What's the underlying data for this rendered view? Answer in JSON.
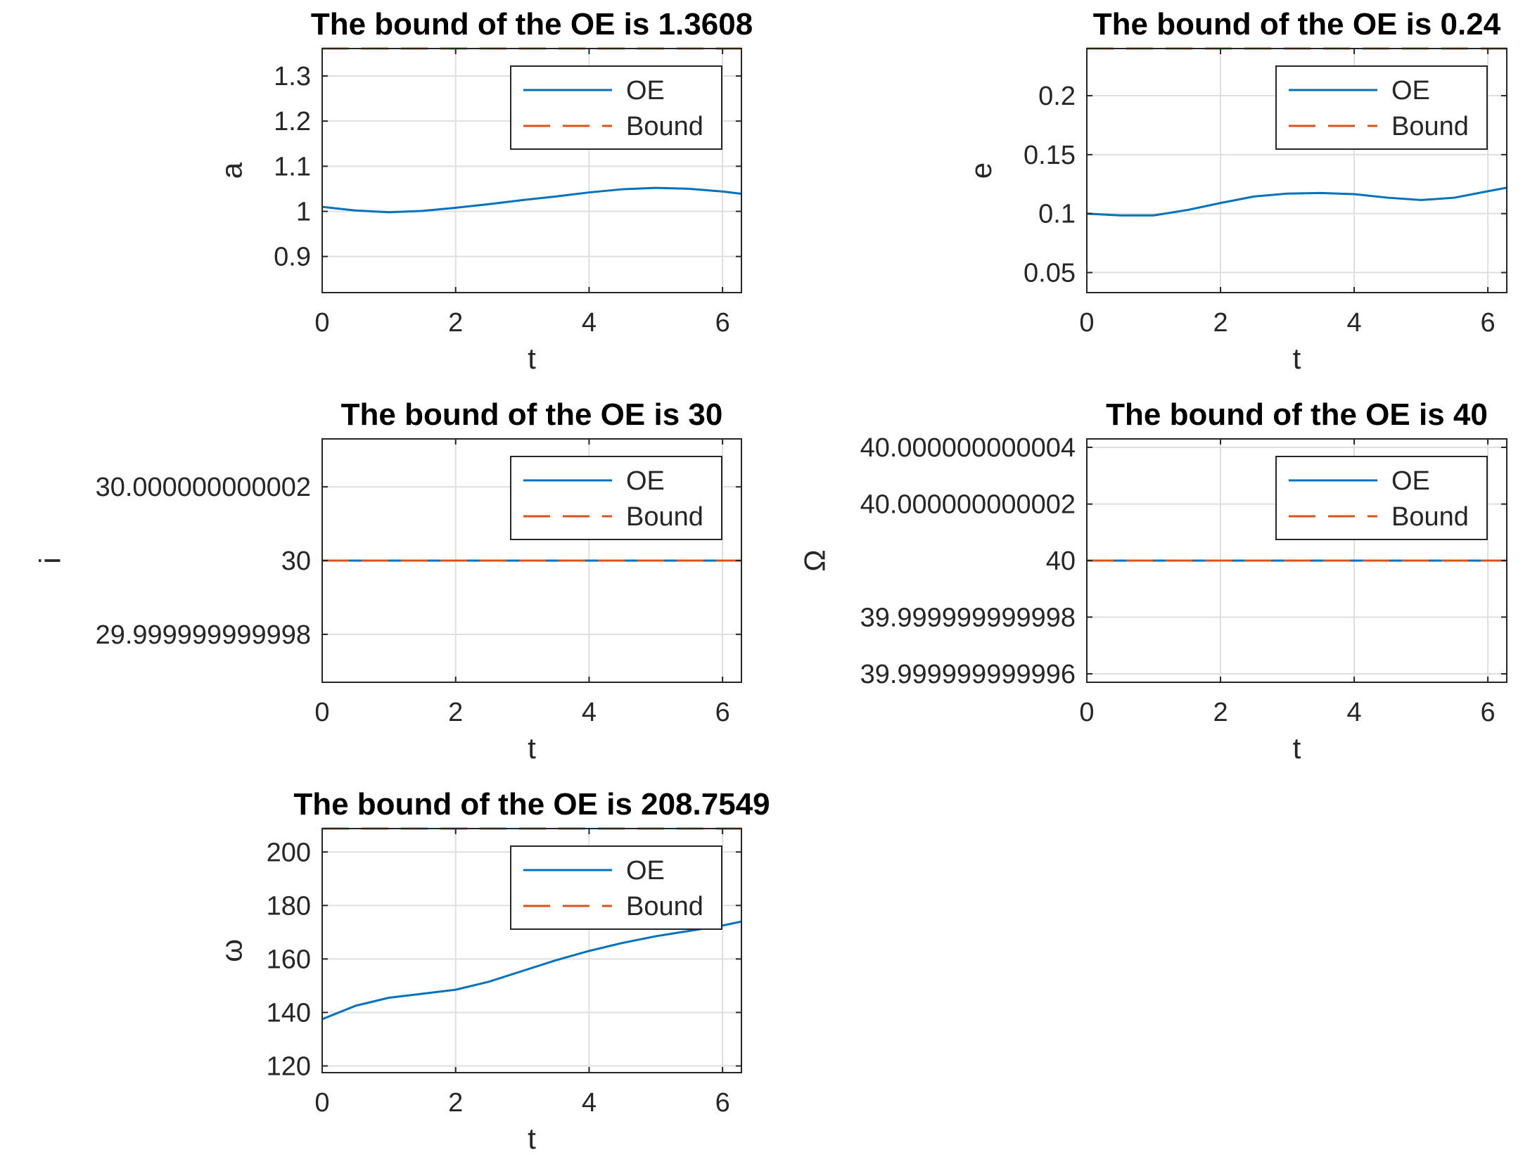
{
  "figure": {
    "colors": {
      "oe": "#0072BD",
      "bound": "#D95319",
      "grid": "#DFDFDF",
      "axis": "#262626",
      "title": "#000000"
    }
  },
  "chart_data": [
    {
      "type": "line",
      "title": "The bound of the OE is 1.3608",
      "xlabel": "t",
      "ylabel": "a",
      "xlim": [
        0,
        6.2832
      ],
      "ylim": [
        0.82,
        1.3608
      ],
      "xticks": [
        0,
        2,
        4,
        6
      ],
      "xtick_labels": [
        "0",
        "2",
        "4",
        "6"
      ],
      "yticks": [
        0.9,
        1.0,
        1.1,
        1.2,
        1.3
      ],
      "ytick_labels": [
        "0.9",
        "1",
        "1.1",
        "1.2",
        "1.3"
      ],
      "legend": [
        "OE",
        "Bound"
      ],
      "legend_location": "top-right",
      "grid": true,
      "series": [
        {
          "name": "OE",
          "x": [
            0,
            0.5,
            1.0,
            1.5,
            2.0,
            2.5,
            3.0,
            3.5,
            4.0,
            4.5,
            5.0,
            5.5,
            6.0,
            6.2832
          ],
          "y": [
            1.01,
            1.002,
            0.998,
            1.001,
            1.008,
            1.016,
            1.025,
            1.033,
            1.042,
            1.049,
            1.052,
            1.05,
            1.044,
            1.039
          ],
          "style": "solid"
        },
        {
          "name": "Bound",
          "x": [
            0,
            6.2832
          ],
          "y": [
            1.3608,
            1.3608
          ],
          "style": "dashed"
        }
      ]
    },
    {
      "type": "line",
      "title": "The bound of the OE is 0.24",
      "xlabel": "t",
      "ylabel": "e",
      "xlim": [
        0,
        6.2832
      ],
      "ylim": [
        0.033,
        0.24
      ],
      "xticks": [
        0,
        2,
        4,
        6
      ],
      "xtick_labels": [
        "0",
        "2",
        "4",
        "6"
      ],
      "yticks": [
        0.05,
        0.1,
        0.15,
        0.2
      ],
      "ytick_labels": [
        "0.05",
        "0.1",
        "0.15",
        "0.2"
      ],
      "legend": [
        "OE",
        "Bound"
      ],
      "legend_location": "top-right",
      "grid": true,
      "series": [
        {
          "name": "OE",
          "x": [
            0,
            0.5,
            1.0,
            1.5,
            2.0,
            2.5,
            3.0,
            3.5,
            4.0,
            4.5,
            5.0,
            5.5,
            6.0,
            6.2832
          ],
          "y": [
            0.1,
            0.0985,
            0.0985,
            0.103,
            0.109,
            0.1145,
            0.117,
            0.1175,
            0.1165,
            0.1135,
            0.1115,
            0.1135,
            0.119,
            0.122
          ],
          "style": "solid"
        },
        {
          "name": "Bound",
          "x": [
            0,
            6.2832
          ],
          "y": [
            0.24,
            0.24
          ],
          "style": "dashed"
        }
      ]
    },
    {
      "type": "line",
      "title": "The bound of the OE is 30",
      "xlabel": "t",
      "ylabel": "i",
      "xlim": [
        0,
        6.2832
      ],
      "ylim": [
        29.9999999999967,
        30.0000000000033
      ],
      "xticks": [
        0,
        2,
        4,
        6
      ],
      "xtick_labels": [
        "0",
        "2",
        "4",
        "6"
      ],
      "yticks": [
        29.999999999998,
        30,
        30.000000000002
      ],
      "ytick_labels": [
        "29.999999999998",
        "30",
        "30.000000000002"
      ],
      "legend": [
        "OE",
        "Bound"
      ],
      "legend_location": "top-right",
      "grid": true,
      "series": [
        {
          "name": "OE",
          "x": [
            0,
            6.2832
          ],
          "y": [
            30,
            30
          ],
          "style": "solid"
        },
        {
          "name": "Bound",
          "x": [
            0,
            6.2832
          ],
          "y": [
            30,
            30
          ],
          "style": "dashed"
        }
      ]
    },
    {
      "type": "line",
      "title": "The bound of the OE is 40",
      "xlabel": "t",
      "ylabel": "Ω",
      "xlim": [
        0,
        6.2832
      ],
      "ylim": [
        39.9999999999957,
        40.0000000000043
      ],
      "xticks": [
        0,
        2,
        4,
        6
      ],
      "xtick_labels": [
        "0",
        "2",
        "4",
        "6"
      ],
      "yticks": [
        39.999999999996,
        39.999999999998,
        40,
        40.000000000002,
        40.000000000004
      ],
      "ytick_labels": [
        "39.999999999996",
        "39.999999999998",
        "40",
        "40.000000000002",
        "40.000000000004"
      ],
      "legend": [
        "OE",
        "Bound"
      ],
      "legend_location": "top-right",
      "grid": true,
      "series": [
        {
          "name": "OE",
          "x": [
            0,
            6.2832
          ],
          "y": [
            40,
            40
          ],
          "style": "solid"
        },
        {
          "name": "Bound",
          "x": [
            0,
            6.2832
          ],
          "y": [
            40,
            40
          ],
          "style": "dashed"
        }
      ]
    },
    {
      "type": "line",
      "title": "The bound of the OE is 208.7549",
      "xlabel": "t",
      "ylabel": "ω",
      "xlim": [
        0,
        6.2832
      ],
      "ylim": [
        117.5,
        208.7549
      ],
      "xticks": [
        0,
        2,
        4,
        6
      ],
      "xtick_labels": [
        "0",
        "2",
        "4",
        "6"
      ],
      "yticks": [
        120,
        140,
        160,
        180,
        200
      ],
      "ytick_labels": [
        "120",
        "140",
        "160",
        "180",
        "200"
      ],
      "legend": [
        "OE",
        "Bound"
      ],
      "legend_location": "top-right",
      "grid": true,
      "series": [
        {
          "name": "OE",
          "x": [
            0,
            0.5,
            1.0,
            1.5,
            2.0,
            2.5,
            3.0,
            3.5,
            4.0,
            4.5,
            5.0,
            5.5,
            6.0,
            6.2832
          ],
          "y": [
            137.5,
            142.5,
            145.5,
            147,
            148.5,
            151.5,
            155.5,
            159.5,
            163,
            166,
            168.5,
            170.5,
            172.5,
            174
          ],
          "style": "solid"
        },
        {
          "name": "Bound",
          "x": [
            0,
            6.2832
          ],
          "y": [
            208.7549,
            208.7549
          ],
          "style": "dashed"
        }
      ]
    }
  ]
}
